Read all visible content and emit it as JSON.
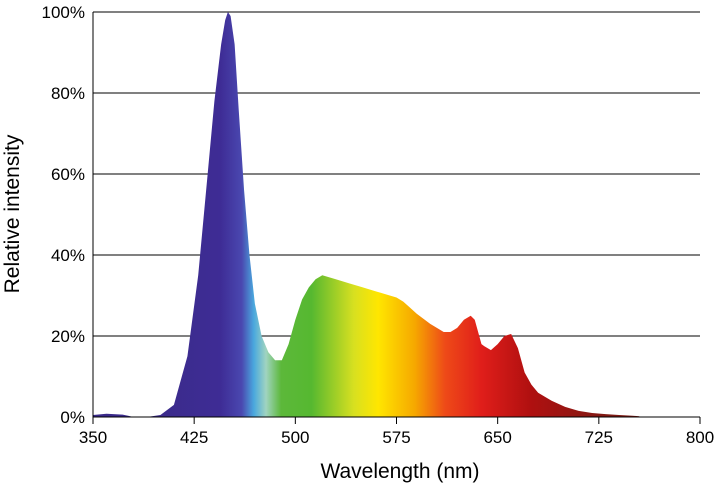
{
  "chart_data": {
    "type": "area",
    "title": "",
    "xlabel": "Wavelength (nm)",
    "ylabel": "Relative intensity",
    "xlim": [
      350,
      800
    ],
    "ylim": [
      0,
      100
    ],
    "x_ticks": [
      350,
      425,
      500,
      575,
      650,
      725,
      800
    ],
    "y_ticks": [
      0,
      20,
      40,
      60,
      80,
      100
    ],
    "y_tick_labels": [
      "0%",
      "20%",
      "40%",
      "60%",
      "80%",
      "100%"
    ],
    "grid": "horizontal",
    "fill": "visible-spectrum gradient",
    "series": [
      {
        "x": [
          350,
          360,
          372,
          380,
          390,
          400,
          410,
          420,
          428,
          435,
          440,
          445,
          448,
          450,
          452,
          455,
          458,
          462,
          466,
          470,
          475,
          480,
          485,
          490,
          495,
          500,
          505,
          510,
          515,
          520,
          525,
          530,
          540,
          550,
          560,
          570,
          575,
          580,
          585,
          590,
          600,
          610,
          615,
          620,
          625,
          630,
          633,
          638,
          640,
          645,
          650,
          655,
          660,
          665,
          670,
          675,
          680,
          690,
          700,
          710,
          720,
          730,
          740,
          750,
          755
        ],
        "values": [
          0.5,
          0.8,
          0.6,
          0,
          0,
          0.5,
          3,
          15,
          35,
          60,
          78,
          92,
          98,
          100,
          99,
          92,
          76,
          56,
          40,
          28,
          20,
          16,
          14,
          14,
          18,
          24,
          29,
          32,
          34,
          35,
          34.5,
          34,
          33,
          32,
          31,
          30,
          29.5,
          28.5,
          27,
          25.5,
          23,
          21,
          21,
          22,
          24,
          25,
          24,
          18,
          17.5,
          16.5,
          18,
          20,
          20.5,
          17,
          11,
          8,
          6,
          4,
          2.5,
          1.5,
          1,
          0.7,
          0.5,
          0.3,
          0.2
        ]
      }
    ]
  }
}
